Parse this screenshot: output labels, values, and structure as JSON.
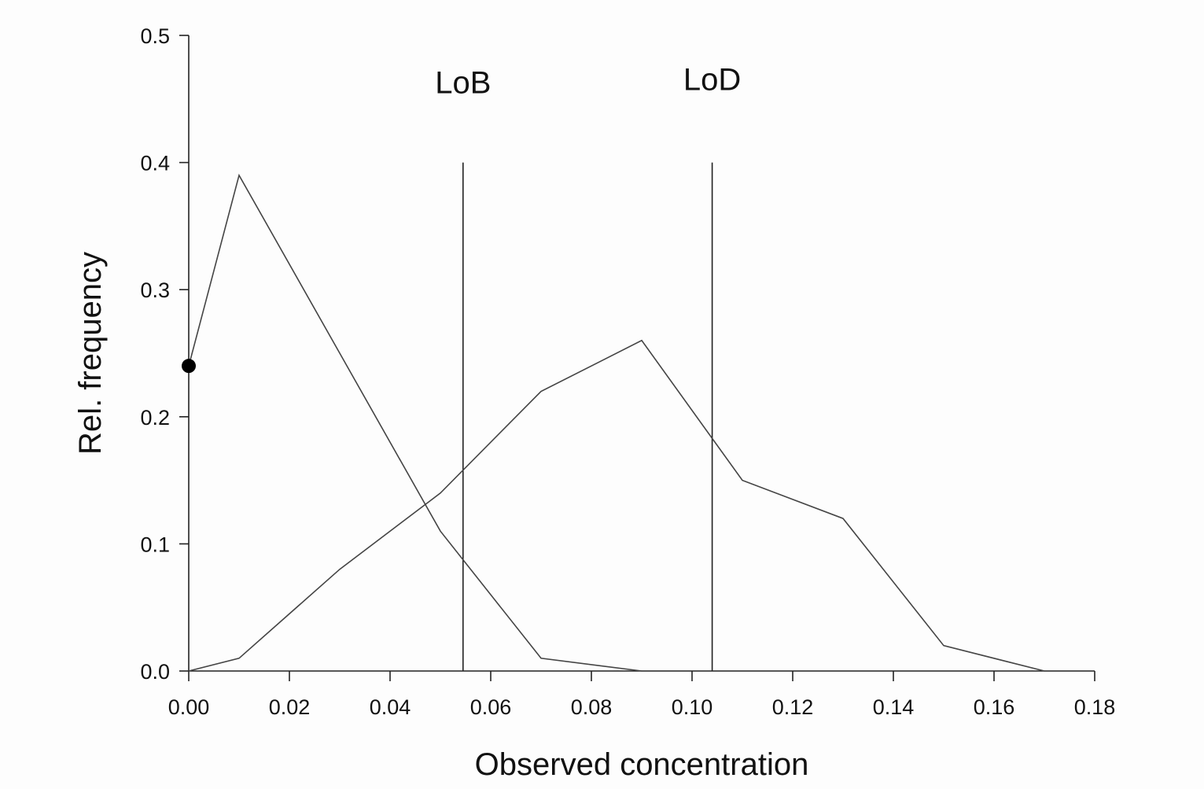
{
  "chart_data": {
    "type": "line",
    "xlabel": "Observed concentration",
    "ylabel": "Rel. frequency",
    "xlim": [
      0,
      0.18
    ],
    "ylim": [
      0,
      0.5
    ],
    "x_ticks": [
      "0.00",
      "0.02",
      "0.04",
      "0.06",
      "0.08",
      "0.10",
      "0.12",
      "0.14",
      "0.16",
      "0.18"
    ],
    "y_ticks": [
      "0.0",
      "0.1",
      "0.2",
      "0.3",
      "0.4",
      "0.5"
    ],
    "grid": false,
    "series": [
      {
        "x": [
          0.0,
          0.01,
          0.03,
          0.05,
          0.07,
          0.09
        ],
        "y": [
          0.24,
          0.39,
          0.25,
          0.11,
          0.01,
          0.0
        ]
      },
      {
        "x": [
          0.0,
          0.01,
          0.03,
          0.05,
          0.07,
          0.09,
          0.11,
          0.13,
          0.15,
          0.17
        ],
        "y": [
          0.0,
          0.01,
          0.08,
          0.14,
          0.22,
          0.26,
          0.15,
          0.12,
          0.02,
          0.0
        ]
      }
    ],
    "markers": [
      {
        "x": 0.0,
        "y": 0.24
      }
    ],
    "reference_lines": [
      {
        "label": "LoB",
        "x": 0.0545,
        "y_top": 0.4
      },
      {
        "label": "LoD",
        "x": 0.104,
        "y_top": 0.4
      }
    ]
  }
}
